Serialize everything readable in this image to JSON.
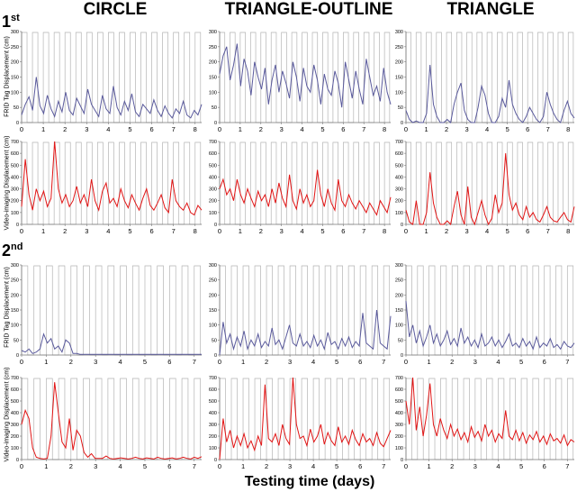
{
  "columns": [
    "CIRCLE",
    "TRIANGLE-OUTLINE",
    "TRIANGLE"
  ],
  "rounds": [
    {
      "label": "1",
      "suffix": "st"
    },
    {
      "label": "2",
      "suffix": "nd"
    }
  ],
  "xlabel": "Testing time (days)",
  "ylabels": {
    "frid": "FRID Tag Displacement (cm)",
    "video": "Video-imaging Displacement (cm)",
    "video_short": "Video-imaging Displacement (cm)"
  },
  "colors": {
    "frid": "#5a5a9c",
    "video": "#e11414",
    "light_cycle": "#b4b4b4"
  },
  "chart_data": {
    "type": "line",
    "layout": "4 rows x 3 columns of small multiples",
    "rows": [
      {
        "round": "1st",
        "measure": "FRID",
        "ylim": [
          0,
          300
        ],
        "yticks": [
          0,
          50,
          100,
          150,
          200,
          250,
          300
        ],
        "xlim": [
          0,
          8.3
        ],
        "xticks": [
          0,
          1,
          2,
          3,
          4,
          5,
          6,
          7,
          8
        ],
        "light_cycle_days": 8.3,
        "series": [
          {
            "column": "CIRCLE",
            "values": [
              25,
              60,
              85,
              40,
              150,
              55,
              30,
              90,
              45,
              20,
              70,
              35,
              100,
              40,
              25,
              80,
              55,
              30,
              110,
              60,
              40,
              20,
              90,
              45,
              30,
              120,
              50,
              25,
              70,
              40,
              95,
              35,
              20,
              60,
              45,
              30,
              75,
              40,
              20,
              55,
              30,
              15,
              45,
              30,
              70,
              25,
              15,
              40,
              25,
              60
            ]
          },
          {
            "column": "TRIANGLE-OUTLINE",
            "values": [
              160,
              220,
              250,
              140,
              190,
              260,
              120,
              210,
              170,
              90,
              200,
              150,
              110,
              180,
              60,
              140,
              190,
              100,
              170,
              130,
              80,
              200,
              150,
              70,
              180,
              120,
              100,
              190,
              140,
              60,
              160,
              110,
              90,
              170,
              130,
              50,
              200,
              140,
              80,
              170,
              110,
              60,
              210,
              150,
              90,
              120,
              70,
              180,
              100,
              60
            ]
          },
          {
            "column": "TRIANGLE",
            "values": [
              40,
              10,
              0,
              5,
              0,
              0,
              30,
              190,
              60,
              20,
              0,
              0,
              10,
              0,
              60,
              100,
              130,
              40,
              10,
              0,
              0,
              50,
              120,
              90,
              30,
              0,
              0,
              20,
              80,
              50,
              140,
              60,
              30,
              10,
              0,
              20,
              50,
              30,
              10,
              0,
              20,
              100,
              60,
              30,
              10,
              0,
              40,
              70,
              30,
              15
            ]
          }
        ]
      },
      {
        "round": "1st",
        "measure": "Video",
        "ylim": [
          0,
          700
        ],
        "yticks": [
          0,
          100,
          200,
          300,
          400,
          500,
          600,
          700
        ],
        "xlim": [
          0,
          8.3
        ],
        "xticks": [
          0,
          1,
          2,
          3,
          4,
          5,
          6,
          7,
          8
        ],
        "light_cycle_days": 8.3,
        "series": [
          {
            "column": "CIRCLE",
            "values": [
              150,
              550,
              250,
              120,
              300,
              200,
              280,
              150,
              220,
              700,
              300,
              180,
              250,
              150,
              200,
              320,
              180,
              250,
              150,
              380,
              200,
              120,
              280,
              350,
              180,
              220,
              150,
              300,
              200,
              140,
              250,
              180,
              120,
              220,
              300,
              160,
              120,
              180,
              250,
              140,
              100,
              380,
              200,
              150,
              120,
              180,
              100,
              80,
              160,
              120
            ]
          },
          {
            "column": "TRIANGLE-OUTLINE",
            "values": [
              300,
              380,
              250,
              300,
              200,
              380,
              250,
              180,
              300,
              220,
              150,
              280,
              200,
              250,
              150,
              300,
              180,
              350,
              220,
              150,
              420,
              200,
              130,
              300,
              180,
              250,
              150,
              200,
              460,
              250,
              150,
              300,
              180,
              120,
              380,
              200,
              150,
              250,
              180,
              130,
              200,
              150,
              100,
              180,
              130,
              80,
              200,
              150,
              100,
              230
            ]
          },
          {
            "column": "TRIANGLE",
            "values": [
              120,
              20,
              0,
              200,
              0,
              0,
              100,
              440,
              180,
              60,
              0,
              0,
              30,
              0,
              150,
              280,
              80,
              0,
              320,
              60,
              0,
              100,
              200,
              80,
              0,
              50,
              250,
              100,
              180,
              600,
              250,
              120,
              180,
              80,
              40,
              150,
              60,
              100,
              40,
              20,
              80,
              150,
              60,
              30,
              20,
              60,
              100,
              40,
              20,
              150
            ]
          }
        ]
      },
      {
        "round": "2nd",
        "measure": "FRID",
        "ylim": [
          0,
          300
        ],
        "yticks": [
          0,
          50,
          100,
          150,
          200,
          250,
          300
        ],
        "xlim": [
          0,
          7.3
        ],
        "xticks": [
          0,
          1,
          2,
          3,
          4,
          5,
          6,
          7
        ],
        "light_cycle_days": 7.3,
        "series": [
          {
            "column": "CIRCLE",
            "values": [
              15,
              10,
              20,
              5,
              10,
              20,
              70,
              40,
              55,
              20,
              30,
              10,
              50,
              40,
              5,
              5,
              2,
              2,
              2,
              2,
              2,
              2,
              2,
              2,
              2,
              2,
              2,
              2,
              2,
              2,
              2,
              2,
              2,
              2,
              2,
              2,
              2,
              2,
              2,
              2,
              2,
              2,
              2,
              2,
              2,
              2,
              2,
              2,
              2,
              2
            ]
          },
          {
            "column": "TRIANGLE-OUTLINE",
            "values": [
              0,
              110,
              40,
              70,
              20,
              60,
              30,
              80,
              20,
              50,
              30,
              70,
              25,
              45,
              30,
              90,
              35,
              50,
              20,
              60,
              100,
              40,
              30,
              70,
              30,
              45,
              25,
              65,
              30,
              50,
              20,
              75,
              35,
              45,
              20,
              55,
              30,
              60,
              25,
              45,
              30,
              140,
              40,
              30,
              20,
              150,
              40,
              30,
              20,
              130
            ]
          },
          {
            "column": "TRIANGLE",
            "values": [
              180,
              60,
              100,
              40,
              80,
              30,
              60,
              100,
              40,
              70,
              30,
              50,
              80,
              35,
              55,
              30,
              90,
              40,
              60,
              30,
              50,
              25,
              70,
              30,
              40,
              60,
              30,
              50,
              25,
              45,
              70,
              30,
              40,
              25,
              55,
              30,
              45,
              20,
              60,
              25,
              40,
              30,
              55,
              25,
              35,
              20,
              45,
              30,
              25,
              40
            ]
          }
        ]
      },
      {
        "round": "2nd",
        "measure": "Video",
        "ylim": [
          0,
          700
        ],
        "yticks": [
          0,
          100,
          200,
          300,
          400,
          500,
          600,
          700
        ],
        "xlim": [
          0,
          7.3
        ],
        "xticks": [
          0,
          1,
          2,
          3,
          4,
          5,
          6,
          7
        ],
        "light_cycle_days": 7.3,
        "series": [
          {
            "column": "CIRCLE",
            "values": [
              300,
              420,
              350,
              100,
              20,
              10,
              5,
              10,
              200,
              660,
              400,
              150,
              100,
              350,
              80,
              250,
              200,
              60,
              20,
              50,
              10,
              10,
              10,
              30,
              10,
              5,
              10,
              15,
              10,
              5,
              10,
              20,
              10,
              5,
              15,
              10,
              5,
              20,
              10,
              5,
              10,
              15,
              5,
              10,
              20,
              10,
              5,
              20,
              10,
              25
            ]
          },
          {
            "column": "TRIANGLE-OUTLINE",
            "values": [
              0,
              350,
              150,
              250,
              100,
              200,
              120,
              220,
              100,
              160,
              80,
              200,
              120,
              640,
              180,
              150,
              220,
              120,
              300,
              180,
              130,
              700,
              300,
              180,
              200,
              120,
              260,
              150,
              200,
              300,
              130,
              230,
              160,
              120,
              280,
              150,
              200,
              130,
              250,
              170,
              120,
              220,
              150,
              180,
              120,
              230,
              140,
              110,
              180,
              250
            ]
          },
          {
            "column": "TRIANGLE",
            "values": [
              500,
              300,
              700,
              250,
              450,
              200,
              380,
              650,
              300,
              200,
              350,
              250,
              180,
              300,
              200,
              260,
              170,
              230,
              150,
              280,
              190,
              240,
              160,
              300,
              200,
              250,
              150,
              220,
              180,
              420,
              200,
              170,
              250,
              160,
              230,
              140,
              210,
              170,
              240,
              150,
              200,
              130,
              220,
              160,
              180,
              140,
              210,
              120,
              170,
              150
            ]
          }
        ]
      }
    ]
  }
}
